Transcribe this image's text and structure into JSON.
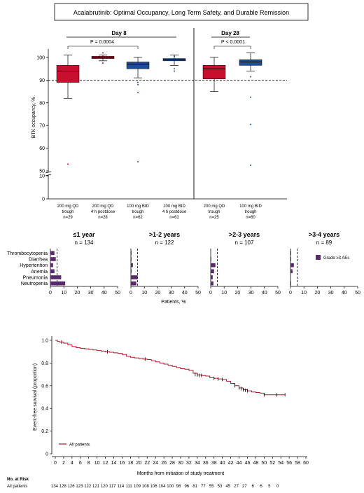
{
  "title": "Acalabrutinib: Optimal Occupancy, Long Term Safety, and Durable Remission",
  "colors": {
    "red": "#c8102e",
    "blue": "#1f4e99",
    "purple": "#5b2a6e",
    "km_line": "#b0182b"
  },
  "chart_data": [
    {
      "type": "box",
      "ylabel": "BTK occupancy, %",
      "yticks": [
        0,
        10,
        50,
        60,
        70,
        80,
        90,
        100
      ],
      "reference_line": 90,
      "groups": [
        {
          "title": "Day 8",
          "p_label": "P = 0.0004"
        },
        {
          "title": "Day 28",
          "p_label": "P < 0.0001"
        }
      ],
      "boxes": [
        {
          "label1": "200 mg QD",
          "label2": "trough",
          "n": "n=29",
          "color": "#c8102e",
          "min": 82,
          "q1": 89,
          "median": 94,
          "q3": 96.5,
          "max": 101,
          "outliers": [
            53
          ]
        },
        {
          "label1": "200 mg QD",
          "label2": "4 h postdose",
          "n": "n=28",
          "color": "#c8102e",
          "min": 98.5,
          "q1": 99.5,
          "median": 100,
          "q3": 100.5,
          "max": 101,
          "outliers": [
            97.5,
            102
          ]
        },
        {
          "label1": "100 mg BID",
          "label2": "trough",
          "n": "n=62",
          "color": "#1f4e99",
          "min": 91,
          "q1": 95,
          "median": 97,
          "q3": 98,
          "max": 100,
          "outliers": [
            89,
            88,
            84.5,
            54
          ]
        },
        {
          "label1": "100 mg BID",
          "label2": "4 h postdose",
          "n": "n=61",
          "color": "#1f4e99",
          "min": 96.5,
          "q1": 98.5,
          "median": 99,
          "q3": 99.5,
          "max": 101,
          "outliers": [
            94,
            95,
            100.5
          ]
        },
        {
          "label1": "200 mg QD",
          "label2": "trough",
          "n": "n=25",
          "color": "#c8102e",
          "min": 85,
          "q1": 90.5,
          "median": 95,
          "q3": 96.5,
          "max": 100,
          "outliers": []
        },
        {
          "label1": "100 mg BID",
          "label2": "trough",
          "n": "n=60",
          "color": "#1f4e99",
          "min": 94,
          "q1": 96.5,
          "median": 98,
          "q3": 99,
          "max": 102,
          "outliers": [
            91.5,
            82.5,
            70.5,
            52.5
          ]
        }
      ]
    },
    {
      "type": "bar",
      "xlabel": "Patients, %",
      "categories": [
        "Thrombocytopenia",
        "Diarrhea",
        "Hypertention",
        "Anemia",
        "Pneumonia",
        "Neutropenia"
      ],
      "xticks": [
        0,
        10,
        20,
        30,
        40,
        50
      ],
      "reference_line": 5,
      "legend": "Grade ≥3 AEs",
      "panels": [
        {
          "title": "≤1 year",
          "n": "n = 134",
          "values": [
            3,
            4,
            2,
            3,
            8,
            11
          ]
        },
        {
          "title": ">1-2 years",
          "n": "n = 122",
          "values": [
            0.5,
            0.5,
            1.5,
            0.5,
            5,
            4
          ]
        },
        {
          "title": ">2-3 years",
          "n": "n = 107",
          "values": [
            0,
            0.5,
            3.5,
            2.5,
            1.5,
            2
          ]
        },
        {
          "title": ">3-4 years",
          "n": "n = 89",
          "values": [
            0.5,
            0.5,
            2.5,
            1.5,
            0,
            0.5
          ]
        }
      ]
    },
    {
      "type": "line",
      "xlabel": "Months from initiation of study treatment",
      "ylabel": "Event-free survival (proportion)",
      "xlim": [
        0,
        60
      ],
      "ylim": [
        0,
        1.0
      ],
      "xticks": [
        0,
        2,
        4,
        6,
        8,
        10,
        12,
        14,
        16,
        18,
        20,
        22,
        24,
        26,
        28,
        30,
        32,
        34,
        36,
        38,
        40,
        42,
        44,
        46,
        48,
        50,
        52,
        54,
        56,
        58,
        60
      ],
      "yticks": [
        "0",
        "0.2",
        "0.4",
        "0.6",
        "0.8",
        "1.0"
      ],
      "legend": "All patients",
      "series": [
        {
          "name": "All patients",
          "points": [
            [
              0,
              1.0
            ],
            [
              0.5,
              0.99
            ],
            [
              1,
              0.985
            ],
            [
              2,
              0.975
            ],
            [
              3,
              0.96
            ],
            [
              4,
              0.945
            ],
            [
              5,
              0.935
            ],
            [
              6,
              0.93
            ],
            [
              7,
              0.925
            ],
            [
              8,
              0.92
            ],
            [
              9,
              0.915
            ],
            [
              10,
              0.91
            ],
            [
              11,
              0.905
            ],
            [
              12,
              0.9
            ],
            [
              13,
              0.895
            ],
            [
              14,
              0.89
            ],
            [
              15,
              0.885
            ],
            [
              16,
              0.875
            ],
            [
              17,
              0.86
            ],
            [
              18,
              0.85
            ],
            [
              19,
              0.845
            ],
            [
              20,
              0.84
            ],
            [
              21,
              0.835
            ],
            [
              22,
              0.83
            ],
            [
              23,
              0.82
            ],
            [
              24,
              0.81
            ],
            [
              25,
              0.8
            ],
            [
              26,
              0.79
            ],
            [
              27,
              0.78
            ],
            [
              28,
              0.77
            ],
            [
              29,
              0.76
            ],
            [
              30,
              0.75
            ],
            [
              31,
              0.745
            ],
            [
              32,
              0.735
            ],
            [
              33,
              0.71
            ],
            [
              34,
              0.695
            ],
            [
              35,
              0.69
            ],
            [
              36,
              0.685
            ],
            [
              37,
              0.67
            ],
            [
              38,
              0.665
            ],
            [
              39,
              0.66
            ],
            [
              40,
              0.655
            ],
            [
              41,
              0.64
            ],
            [
              42,
              0.62
            ],
            [
              43,
              0.6
            ],
            [
              44,
              0.58
            ],
            [
              45,
              0.565
            ],
            [
              46,
              0.555
            ],
            [
              47,
              0.545
            ],
            [
              48,
              0.54
            ],
            [
              49,
              0.535
            ],
            [
              50,
              0.52
            ],
            [
              51,
              0.52
            ],
            [
              52,
              0.52
            ],
            [
              53,
              0.52
            ],
            [
              54,
              0.52
            ],
            [
              55,
              0.52
            ]
          ],
          "censored": [
            [
              1.5,
              0.985
            ],
            [
              12.5,
              0.9
            ],
            [
              21.5,
              0.835
            ],
            [
              33.5,
              0.7
            ],
            [
              34,
              0.695
            ],
            [
              34.5,
              0.69
            ],
            [
              35,
              0.69
            ],
            [
              38,
              0.665
            ],
            [
              39,
              0.66
            ],
            [
              40,
              0.655
            ],
            [
              43,
              0.6
            ],
            [
              44,
              0.58
            ],
            [
              44.5,
              0.575
            ],
            [
              45,
              0.565
            ],
            [
              45.5,
              0.56
            ],
            [
              46,
              0.555
            ],
            [
              50,
              0.52
            ],
            [
              53,
              0.52
            ],
            [
              55,
              0.52
            ]
          ]
        }
      ],
      "at_risk": {
        "header": "No. at Risk",
        "row_label": "All patients",
        "values": [
          "134",
          "128",
          "126",
          "123",
          "122",
          "121",
          "120",
          "117",
          "114",
          "111",
          "109",
          "108",
          "106",
          "104",
          "100",
          "98",
          "96",
          "81",
          "77",
          "55",
          "53",
          "45",
          "27",
          "27",
          "6",
          "6",
          "5",
          "0"
        ]
      }
    }
  ]
}
